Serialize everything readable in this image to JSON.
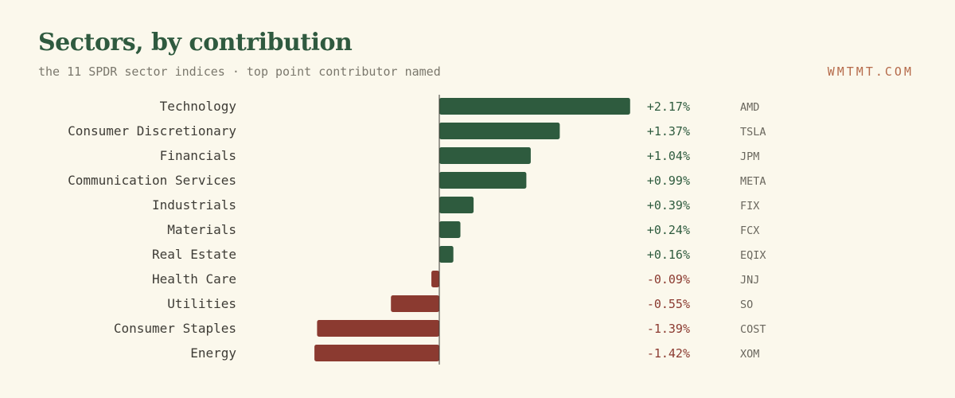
{
  "header": {
    "title": "Sectors, by contribution",
    "subtitle": "the 11 SPDR sector indices · top point contributor named",
    "brand": "WMTMT.COM"
  },
  "colors": {
    "positive": "#2e5b3e",
    "negative": "#8b3a30",
    "axis": "#3e3c36"
  },
  "chart_data": {
    "type": "bar",
    "orientation": "horizontal",
    "value_unit": "%",
    "categories": [
      "Technology",
      "Consumer Discretionary",
      "Financials",
      "Communication Services",
      "Industrials",
      "Materials",
      "Real Estate",
      "Health Care",
      "Utilities",
      "Consumer Staples",
      "Energy"
    ],
    "values": [
      2.17,
      1.37,
      1.04,
      0.99,
      0.39,
      0.24,
      0.16,
      -0.09,
      -0.55,
      -1.39,
      -1.42
    ],
    "value_labels": [
      "+2.17%",
      "+1.37%",
      "+1.04%",
      "+0.99%",
      "+0.39%",
      "+0.24%",
      "+0.16%",
      "-0.09%",
      "-0.55%",
      "-1.39%",
      "-1.42%"
    ],
    "top_contributors": [
      "AMD",
      "TSLA",
      "JPM",
      "META",
      "FIX",
      "FCX",
      "EQIX",
      "JNJ",
      "SO",
      "COST",
      "XOM"
    ],
    "title": "Sectors, by contribution",
    "xlim": [
      -1.42,
      2.17
    ],
    "grid": false,
    "legend": "none"
  }
}
